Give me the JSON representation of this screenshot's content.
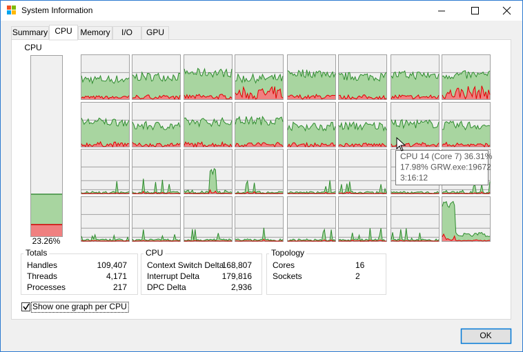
{
  "window": {
    "title": "System Information"
  },
  "tabs": [
    "Summary",
    "CPU",
    "Memory",
    "I/O",
    "GPU"
  ],
  "cpu_meter": {
    "label": "CPU",
    "value": 23.26,
    "value_label": "23.26%"
  },
  "groups": [
    {
      "title": "Totals",
      "rows": [
        [
          "Handles",
          "109,407"
        ],
        [
          "Threads",
          "4,171"
        ],
        [
          "Processes",
          "217"
        ]
      ]
    },
    {
      "title": "CPU",
      "rows": [
        [
          "Context Switch Delta",
          "168,807"
        ],
        [
          "Interrupt Delta",
          "179,816"
        ],
        [
          "DPC Delta",
          "2,936"
        ]
      ]
    },
    {
      "title": "Topology",
      "rows": [
        [
          "Cores",
          "16"
        ],
        [
          "Sockets",
          "2"
        ]
      ]
    }
  ],
  "checkbox": {
    "label": "Show one graph per CPU",
    "checked": true
  },
  "tooltip": {
    "lines": [
      "CPU 14 (Core 7) 36.31%",
      "17.98% GRW.exe:19672",
      "3:16:12"
    ]
  },
  "button": "OK"
}
